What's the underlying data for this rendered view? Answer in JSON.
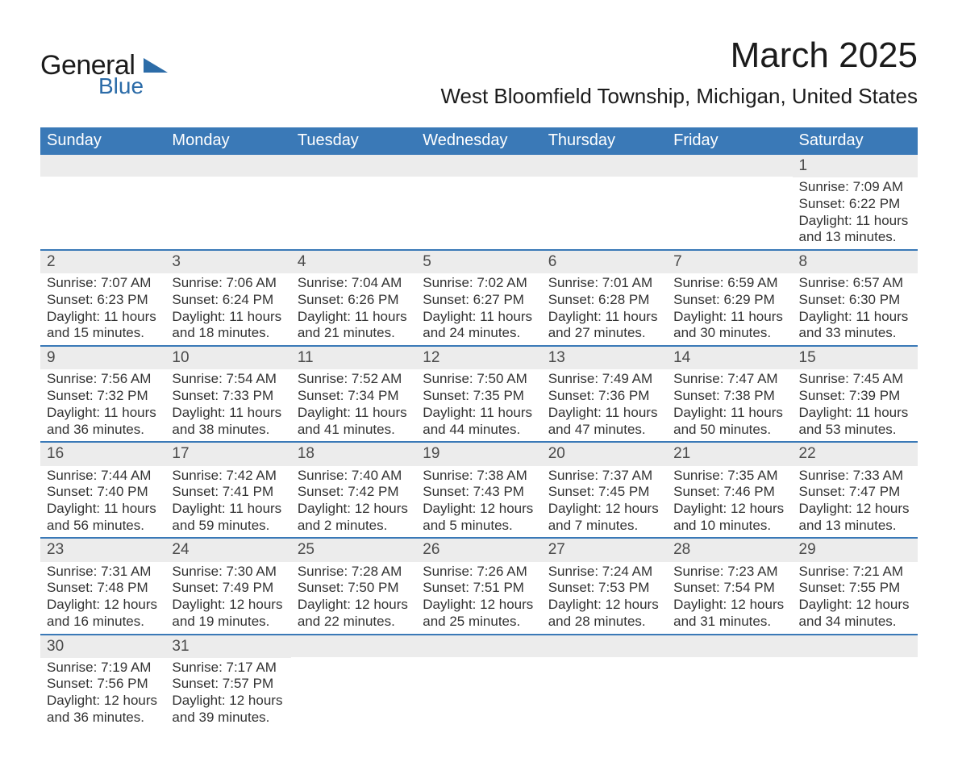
{
  "brand": {
    "general": "General",
    "blue": "Blue"
  },
  "title": "March 2025",
  "subtitle": "West Bloomfield Township, Michigan, United States",
  "colors": {
    "header_bg": "#3a79b7",
    "header_text": "#ffffff",
    "daynum_bg": "#ececec",
    "rule": "#3a79b7",
    "body_text": "#333333",
    "brand_blue": "#2c6ca8"
  },
  "font_sizes": {
    "title": 44,
    "subtitle": 26,
    "day_header": 20,
    "daynum": 19,
    "detail": 17,
    "logo_general": 34,
    "logo_blue": 28
  },
  "day_headers": [
    "Sunday",
    "Monday",
    "Tuesday",
    "Wednesday",
    "Thursday",
    "Friday",
    "Saturday"
  ],
  "weeks": [
    [
      {
        "day": "",
        "sunrise": "",
        "sunset": "",
        "daylight1": "",
        "daylight2": ""
      },
      {
        "day": "",
        "sunrise": "",
        "sunset": "",
        "daylight1": "",
        "daylight2": ""
      },
      {
        "day": "",
        "sunrise": "",
        "sunset": "",
        "daylight1": "",
        "daylight2": ""
      },
      {
        "day": "",
        "sunrise": "",
        "sunset": "",
        "daylight1": "",
        "daylight2": ""
      },
      {
        "day": "",
        "sunrise": "",
        "sunset": "",
        "daylight1": "",
        "daylight2": ""
      },
      {
        "day": "",
        "sunrise": "",
        "sunset": "",
        "daylight1": "",
        "daylight2": ""
      },
      {
        "day": "1",
        "sunrise": "Sunrise: 7:09 AM",
        "sunset": "Sunset: 6:22 PM",
        "daylight1": "Daylight: 11 hours",
        "daylight2": "and 13 minutes."
      }
    ],
    [
      {
        "day": "2",
        "sunrise": "Sunrise: 7:07 AM",
        "sunset": "Sunset: 6:23 PM",
        "daylight1": "Daylight: 11 hours",
        "daylight2": "and 15 minutes."
      },
      {
        "day": "3",
        "sunrise": "Sunrise: 7:06 AM",
        "sunset": "Sunset: 6:24 PM",
        "daylight1": "Daylight: 11 hours",
        "daylight2": "and 18 minutes."
      },
      {
        "day": "4",
        "sunrise": "Sunrise: 7:04 AM",
        "sunset": "Sunset: 6:26 PM",
        "daylight1": "Daylight: 11 hours",
        "daylight2": "and 21 minutes."
      },
      {
        "day": "5",
        "sunrise": "Sunrise: 7:02 AM",
        "sunset": "Sunset: 6:27 PM",
        "daylight1": "Daylight: 11 hours",
        "daylight2": "and 24 minutes."
      },
      {
        "day": "6",
        "sunrise": "Sunrise: 7:01 AM",
        "sunset": "Sunset: 6:28 PM",
        "daylight1": "Daylight: 11 hours",
        "daylight2": "and 27 minutes."
      },
      {
        "day": "7",
        "sunrise": "Sunrise: 6:59 AM",
        "sunset": "Sunset: 6:29 PM",
        "daylight1": "Daylight: 11 hours",
        "daylight2": "and 30 minutes."
      },
      {
        "day": "8",
        "sunrise": "Sunrise: 6:57 AM",
        "sunset": "Sunset: 6:30 PM",
        "daylight1": "Daylight: 11 hours",
        "daylight2": "and 33 minutes."
      }
    ],
    [
      {
        "day": "9",
        "sunrise": "Sunrise: 7:56 AM",
        "sunset": "Sunset: 7:32 PM",
        "daylight1": "Daylight: 11 hours",
        "daylight2": "and 36 minutes."
      },
      {
        "day": "10",
        "sunrise": "Sunrise: 7:54 AM",
        "sunset": "Sunset: 7:33 PM",
        "daylight1": "Daylight: 11 hours",
        "daylight2": "and 38 minutes."
      },
      {
        "day": "11",
        "sunrise": "Sunrise: 7:52 AM",
        "sunset": "Sunset: 7:34 PM",
        "daylight1": "Daylight: 11 hours",
        "daylight2": "and 41 minutes."
      },
      {
        "day": "12",
        "sunrise": "Sunrise: 7:50 AM",
        "sunset": "Sunset: 7:35 PM",
        "daylight1": "Daylight: 11 hours",
        "daylight2": "and 44 minutes."
      },
      {
        "day": "13",
        "sunrise": "Sunrise: 7:49 AM",
        "sunset": "Sunset: 7:36 PM",
        "daylight1": "Daylight: 11 hours",
        "daylight2": "and 47 minutes."
      },
      {
        "day": "14",
        "sunrise": "Sunrise: 7:47 AM",
        "sunset": "Sunset: 7:38 PM",
        "daylight1": "Daylight: 11 hours",
        "daylight2": "and 50 minutes."
      },
      {
        "day": "15",
        "sunrise": "Sunrise: 7:45 AM",
        "sunset": "Sunset: 7:39 PM",
        "daylight1": "Daylight: 11 hours",
        "daylight2": "and 53 minutes."
      }
    ],
    [
      {
        "day": "16",
        "sunrise": "Sunrise: 7:44 AM",
        "sunset": "Sunset: 7:40 PM",
        "daylight1": "Daylight: 11 hours",
        "daylight2": "and 56 minutes."
      },
      {
        "day": "17",
        "sunrise": "Sunrise: 7:42 AM",
        "sunset": "Sunset: 7:41 PM",
        "daylight1": "Daylight: 11 hours",
        "daylight2": "and 59 minutes."
      },
      {
        "day": "18",
        "sunrise": "Sunrise: 7:40 AM",
        "sunset": "Sunset: 7:42 PM",
        "daylight1": "Daylight: 12 hours",
        "daylight2": "and 2 minutes."
      },
      {
        "day": "19",
        "sunrise": "Sunrise: 7:38 AM",
        "sunset": "Sunset: 7:43 PM",
        "daylight1": "Daylight: 12 hours",
        "daylight2": "and 5 minutes."
      },
      {
        "day": "20",
        "sunrise": "Sunrise: 7:37 AM",
        "sunset": "Sunset: 7:45 PM",
        "daylight1": "Daylight: 12 hours",
        "daylight2": "and 7 minutes."
      },
      {
        "day": "21",
        "sunrise": "Sunrise: 7:35 AM",
        "sunset": "Sunset: 7:46 PM",
        "daylight1": "Daylight: 12 hours",
        "daylight2": "and 10 minutes."
      },
      {
        "day": "22",
        "sunrise": "Sunrise: 7:33 AM",
        "sunset": "Sunset: 7:47 PM",
        "daylight1": "Daylight: 12 hours",
        "daylight2": "and 13 minutes."
      }
    ],
    [
      {
        "day": "23",
        "sunrise": "Sunrise: 7:31 AM",
        "sunset": "Sunset: 7:48 PM",
        "daylight1": "Daylight: 12 hours",
        "daylight2": "and 16 minutes."
      },
      {
        "day": "24",
        "sunrise": "Sunrise: 7:30 AM",
        "sunset": "Sunset: 7:49 PM",
        "daylight1": "Daylight: 12 hours",
        "daylight2": "and 19 minutes."
      },
      {
        "day": "25",
        "sunrise": "Sunrise: 7:28 AM",
        "sunset": "Sunset: 7:50 PM",
        "daylight1": "Daylight: 12 hours",
        "daylight2": "and 22 minutes."
      },
      {
        "day": "26",
        "sunrise": "Sunrise: 7:26 AM",
        "sunset": "Sunset: 7:51 PM",
        "daylight1": "Daylight: 12 hours",
        "daylight2": "and 25 minutes."
      },
      {
        "day": "27",
        "sunrise": "Sunrise: 7:24 AM",
        "sunset": "Sunset: 7:53 PM",
        "daylight1": "Daylight: 12 hours",
        "daylight2": "and 28 minutes."
      },
      {
        "day": "28",
        "sunrise": "Sunrise: 7:23 AM",
        "sunset": "Sunset: 7:54 PM",
        "daylight1": "Daylight: 12 hours",
        "daylight2": "and 31 minutes."
      },
      {
        "day": "29",
        "sunrise": "Sunrise: 7:21 AM",
        "sunset": "Sunset: 7:55 PM",
        "daylight1": "Daylight: 12 hours",
        "daylight2": "and 34 minutes."
      }
    ],
    [
      {
        "day": "30",
        "sunrise": "Sunrise: 7:19 AM",
        "sunset": "Sunset: 7:56 PM",
        "daylight1": "Daylight: 12 hours",
        "daylight2": "and 36 minutes."
      },
      {
        "day": "31",
        "sunrise": "Sunrise: 7:17 AM",
        "sunset": "Sunset: 7:57 PM",
        "daylight1": "Daylight: 12 hours",
        "daylight2": "and 39 minutes."
      },
      {
        "day": "",
        "sunrise": "",
        "sunset": "",
        "daylight1": "",
        "daylight2": ""
      },
      {
        "day": "",
        "sunrise": "",
        "sunset": "",
        "daylight1": "",
        "daylight2": ""
      },
      {
        "day": "",
        "sunrise": "",
        "sunset": "",
        "daylight1": "",
        "daylight2": ""
      },
      {
        "day": "",
        "sunrise": "",
        "sunset": "",
        "daylight1": "",
        "daylight2": ""
      },
      {
        "day": "",
        "sunrise": "",
        "sunset": "",
        "daylight1": "",
        "daylight2": ""
      }
    ]
  ]
}
